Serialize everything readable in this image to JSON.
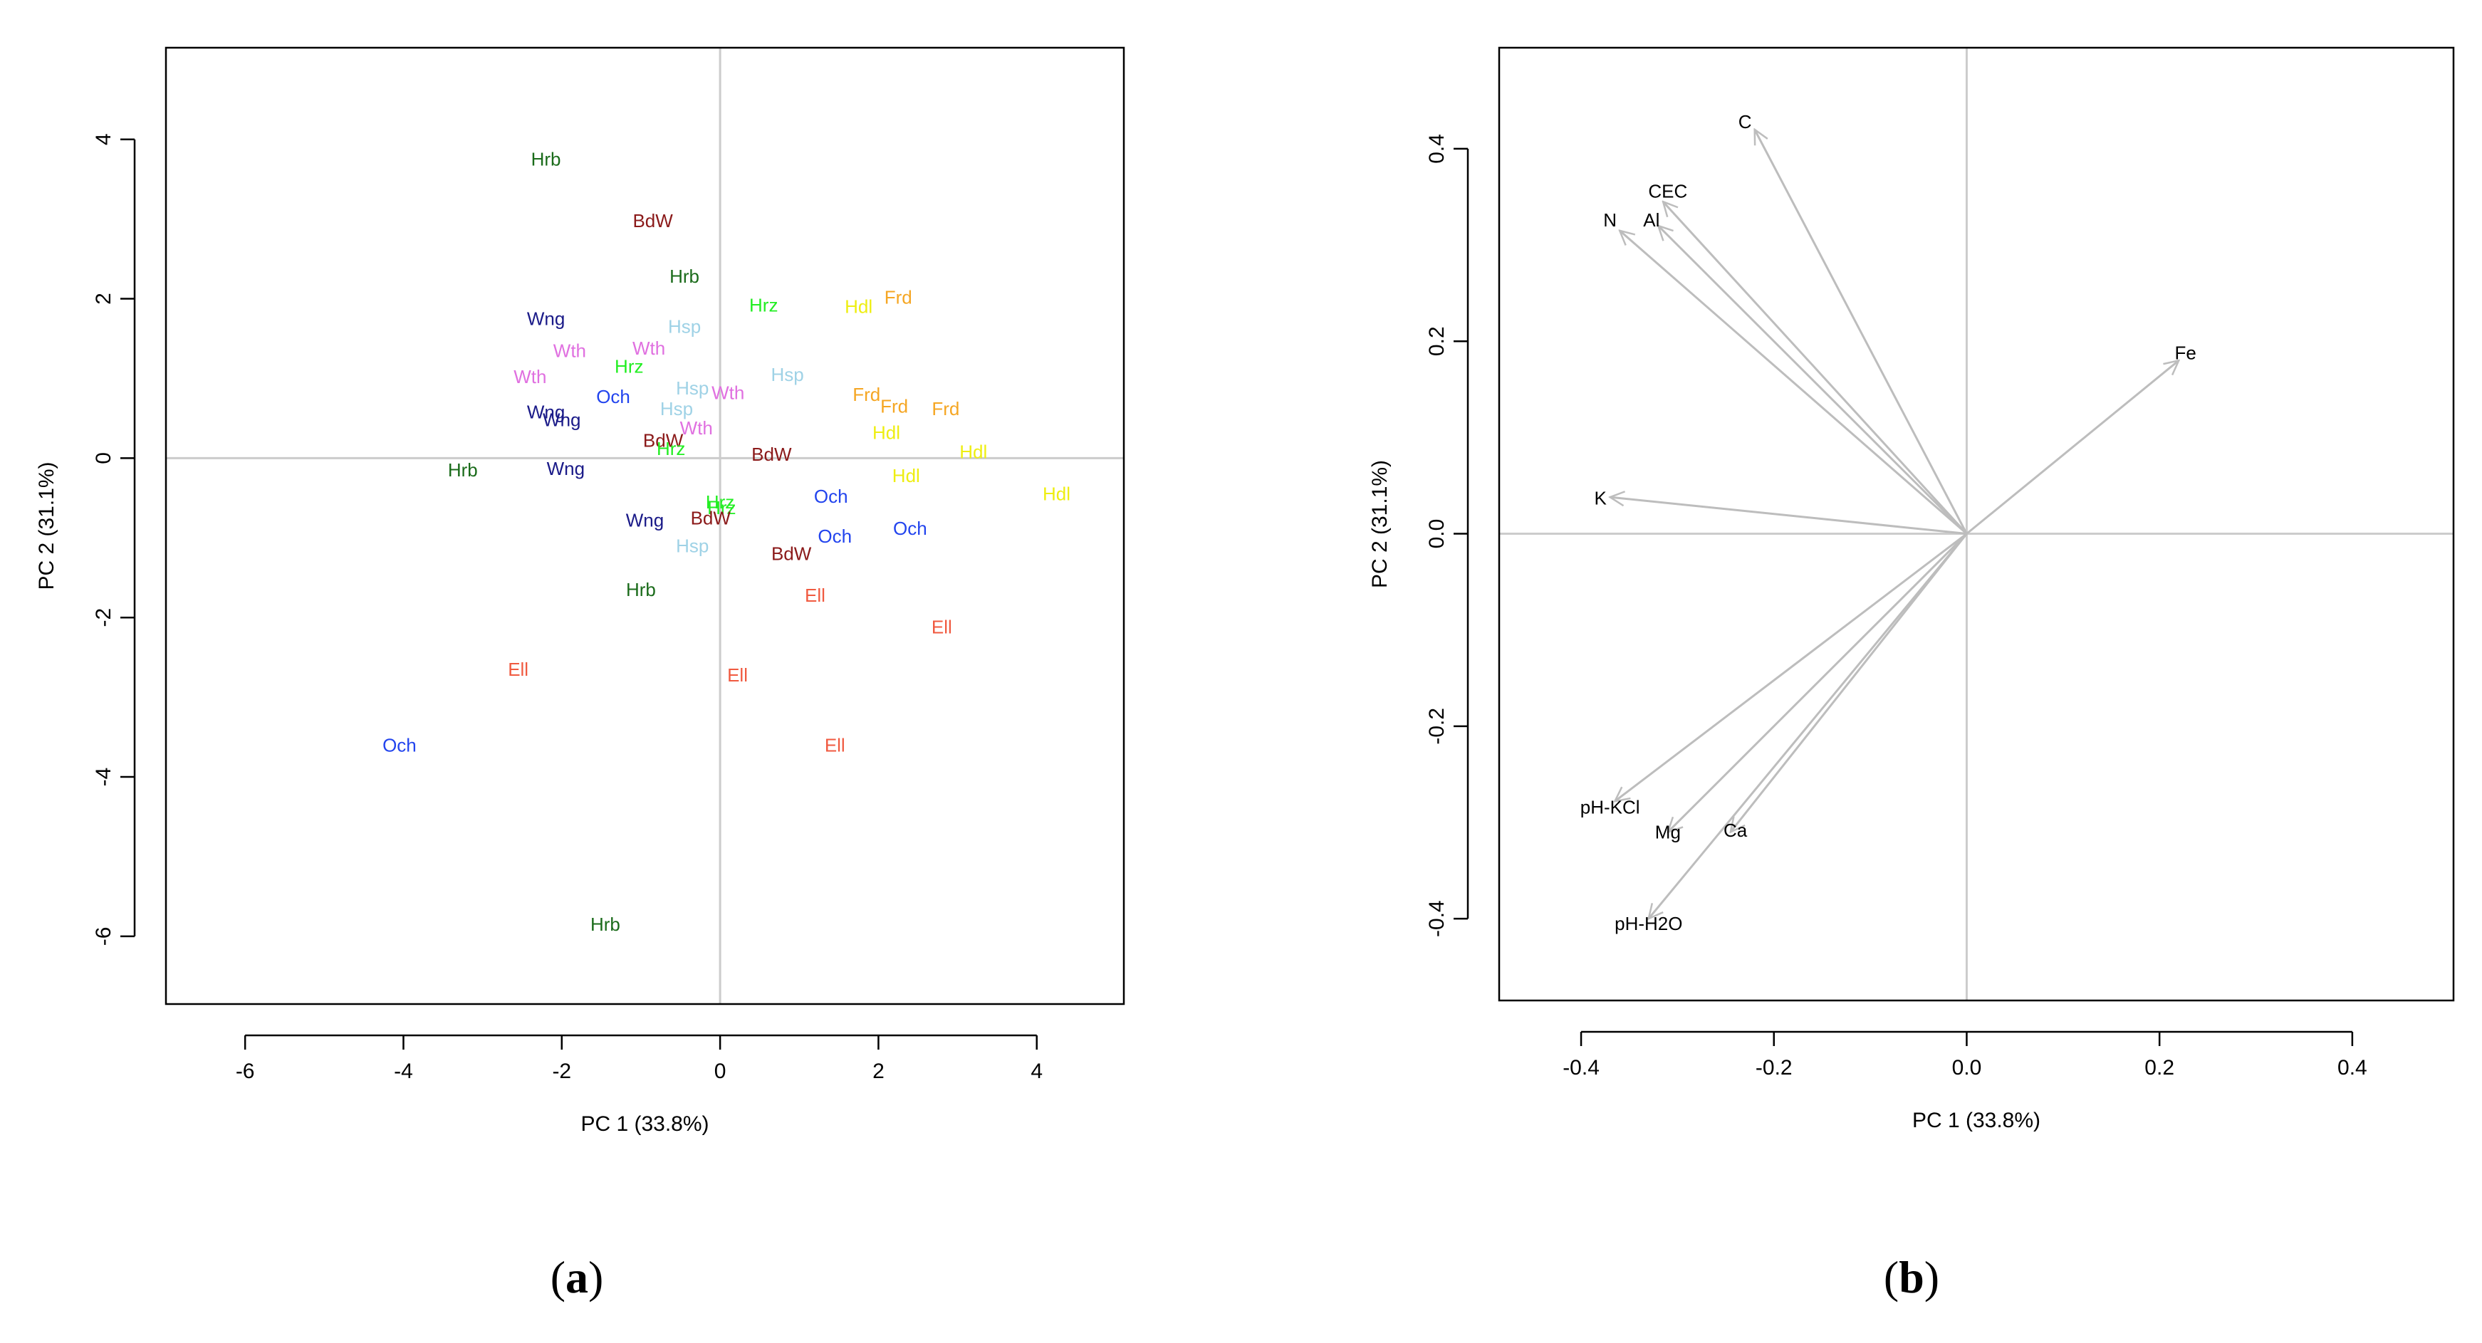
{
  "chart_data": [
    {
      "type": "scatter",
      "panel_label": "(a)",
      "panel_letter": "a",
      "xlabel": "PC 1 (33.8%)",
      "ylabel": "PC 2 (31.1%)",
      "xlim": [
        -7.0,
        5.1
      ],
      "ylim": [
        -6.85,
        5.15
      ],
      "xticks": [
        -6,
        -4,
        -2,
        0,
        2,
        4
      ],
      "yticks": [
        -6,
        -4,
        -2,
        0,
        2,
        4
      ],
      "colors": {
        "Hrb": "#1a6b1a",
        "BdW": "#8b1a1a",
        "Hrz": "#22ee22",
        "Hsp": "#9fd2e6",
        "Wng": "#1a1a88",
        "Wth": "#e070e0",
        "Och": "#2244ee",
        "Hdl": "#eeee11",
        "Frd": "#f5a623",
        "Ell": "#f05a40"
      },
      "points": [
        {
          "label": "Hrb",
          "x": -2.2,
          "y": 3.75
        },
        {
          "label": "BdW",
          "x": -0.85,
          "y": 2.98
        },
        {
          "label": "Hrb",
          "x": -0.45,
          "y": 2.28
        },
        {
          "label": "Hrz",
          "x": 0.55,
          "y": 1.92
        },
        {
          "label": "Hdl",
          "x": 1.75,
          "y": 1.9
        },
        {
          "label": "Frd",
          "x": 2.25,
          "y": 2.02
        },
        {
          "label": "Wng",
          "x": -2.2,
          "y": 1.75
        },
        {
          "label": "Hsp",
          "x": -0.45,
          "y": 1.65
        },
        {
          "label": "Wth",
          "x": -1.9,
          "y": 1.35
        },
        {
          "label": "Wth",
          "x": -0.9,
          "y": 1.38
        },
        {
          "label": "Hrz",
          "x": -1.15,
          "y": 1.15
        },
        {
          "label": "Hsp",
          "x": 0.85,
          "y": 1.05
        },
        {
          "label": "Wth",
          "x": -2.4,
          "y": 1.02
        },
        {
          "label": "Hsp",
          "x": -0.35,
          "y": 0.88
        },
        {
          "label": "Wth",
          "x": 0.1,
          "y": 0.82
        },
        {
          "label": "Och",
          "x": -1.35,
          "y": 0.77
        },
        {
          "label": "Frd",
          "x": 1.85,
          "y": 0.8
        },
        {
          "label": "Frd",
          "x": 2.2,
          "y": 0.65
        },
        {
          "label": "Frd",
          "x": 2.85,
          "y": 0.62
        },
        {
          "label": "Hsp",
          "x": -0.55,
          "y": 0.62
        },
        {
          "label": "Wng",
          "x": -2.2,
          "y": 0.58
        },
        {
          "label": "Wng",
          "x": -2.0,
          "y": 0.48
        },
        {
          "label": "Wth",
          "x": -0.3,
          "y": 0.38
        },
        {
          "label": "Hdl",
          "x": 2.1,
          "y": 0.32
        },
        {
          "label": "BdW",
          "x": -0.72,
          "y": 0.22
        },
        {
          "label": "Hrz",
          "x": -0.62,
          "y": 0.12
        },
        {
          "label": "BdW",
          "x": 0.65,
          "y": 0.05
        },
        {
          "label": "Hdl",
          "x": 3.2,
          "y": 0.08
        },
        {
          "label": "Hrb",
          "x": -3.25,
          "y": -0.15
        },
        {
          "label": "Wng",
          "x": -1.95,
          "y": -0.13
        },
        {
          "label": "Hdl",
          "x": 2.35,
          "y": -0.22
        },
        {
          "label": "Hdl",
          "x": 4.25,
          "y": -0.45
        },
        {
          "label": "Och",
          "x": 1.4,
          "y": -0.48
        },
        {
          "label": "Hrz",
          "x": 0.0,
          "y": -0.55
        },
        {
          "label": "Hrz",
          "x": 0.02,
          "y": -0.62
        },
        {
          "label": "Wng",
          "x": -0.95,
          "y": -0.78
        },
        {
          "label": "BdW",
          "x": -0.12,
          "y": -0.75
        },
        {
          "label": "Och",
          "x": 2.4,
          "y": -0.88
        },
        {
          "label": "Och",
          "x": 1.45,
          "y": -0.98
        },
        {
          "label": "Hsp",
          "x": -0.35,
          "y": -1.1
        },
        {
          "label": "BdW",
          "x": 0.9,
          "y": -1.2
        },
        {
          "label": "Hrb",
          "x": -1.0,
          "y": -1.65
        },
        {
          "label": "Ell",
          "x": 1.2,
          "y": -1.72
        },
        {
          "label": "Ell",
          "x": 2.8,
          "y": -2.12
        },
        {
          "label": "Ell",
          "x": -2.55,
          "y": -2.65
        },
        {
          "label": "Ell",
          "x": 0.22,
          "y": -2.72
        },
        {
          "label": "Och",
          "x": -4.05,
          "y": -3.6
        },
        {
          "label": "Ell",
          "x": 1.45,
          "y": -3.6
        },
        {
          "label": "Hrb",
          "x": -1.45,
          "y": -5.85
        }
      ]
    },
    {
      "type": "line",
      "subtype": "loading-vectors",
      "panel_label": "(b)",
      "panel_letter": "b",
      "xlabel": "PC 1 (33.8%)",
      "ylabel": "PC 2 (31.1%)",
      "xlim": [
        -0.485,
        0.505
      ],
      "ylim": [
        -0.485,
        0.505
      ],
      "xticks": [
        "-0.4",
        "-0.2",
        "0.0",
        "0.2",
        "0.4"
      ],
      "yticks": [
        "-0.4",
        "-0.2",
        "0.0",
        "0.2",
        "0.4"
      ],
      "vectors": [
        {
          "label": "C",
          "x": -0.22,
          "y": 0.42,
          "label_x": -0.23,
          "label_y": 0.428
        },
        {
          "label": "CEC",
          "x": -0.315,
          "y": 0.345,
          "label_x": -0.31,
          "label_y": 0.356
        },
        {
          "label": "Al",
          "x": -0.32,
          "y": 0.32,
          "label_x": -0.327,
          "label_y": 0.326
        },
        {
          "label": "N",
          "x": -0.36,
          "y": 0.315,
          "label_x": -0.37,
          "label_y": 0.326
        },
        {
          "label": "Fe",
          "x": 0.22,
          "y": 0.18,
          "label_x": 0.227,
          "label_y": 0.188
        },
        {
          "label": "K",
          "x": -0.37,
          "y": 0.038,
          "label_x": -0.38,
          "label_y": 0.037
        },
        {
          "label": "pH-KCl",
          "x": -0.365,
          "y": -0.278,
          "label_x": -0.37,
          "label_y": -0.284
        },
        {
          "label": "Mg",
          "x": -0.31,
          "y": -0.31,
          "label_x": -0.31,
          "label_y": -0.31
        },
        {
          "label": "Ca",
          "x": -0.245,
          "y": -0.31,
          "label_x": -0.24,
          "label_y": -0.308
        },
        {
          "label": "pH-H2O",
          "x": -0.33,
          "y": -0.4,
          "label_x": -0.33,
          "label_y": -0.405
        }
      ]
    }
  ]
}
